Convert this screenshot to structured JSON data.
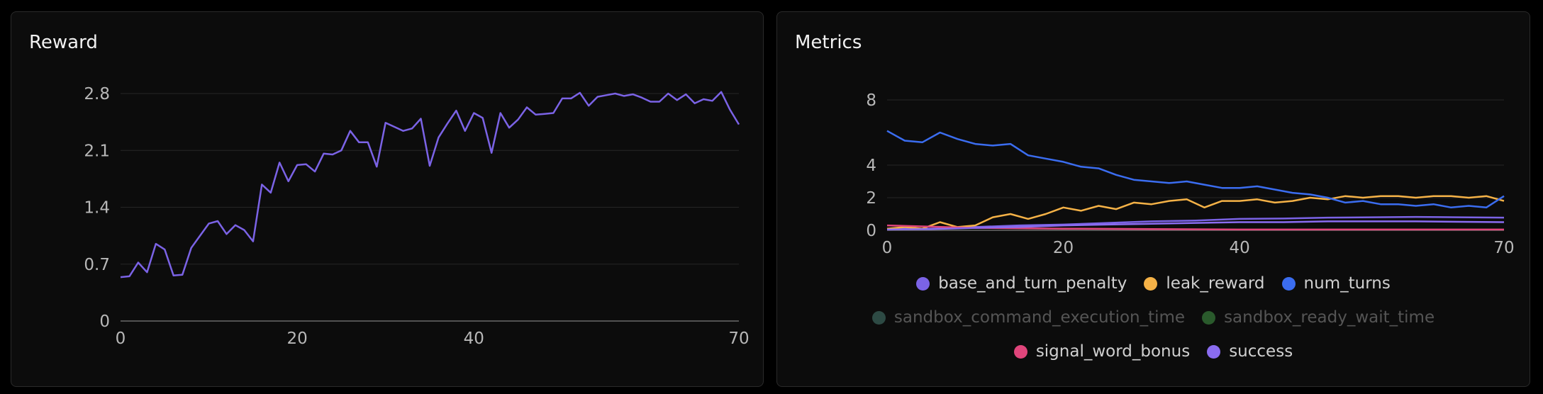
{
  "panels": {
    "reward_title": "Reward",
    "metrics_title": "Metrics"
  },
  "chart_data": [
    {
      "type": "line",
      "title": "Reward",
      "xlim": [
        0,
        70
      ],
      "ylim": [
        0,
        2.8
      ],
      "x_ticks": [
        "0",
        "20",
        "40",
        "70"
      ],
      "y_ticks": [
        "0",
        "0.7",
        "1.4",
        "2.1",
        "2.8"
      ],
      "grid": true,
      "series": [
        {
          "color": "#7b63e6",
          "x": [
            0,
            1,
            2,
            3,
            4,
            5,
            6,
            7,
            8,
            9,
            10,
            11,
            12,
            13,
            14,
            15,
            16,
            17,
            18,
            19,
            20,
            21,
            22,
            23,
            24,
            25,
            26,
            27,
            28,
            29,
            30,
            31,
            32,
            33,
            34,
            35,
            36,
            37,
            38,
            39,
            40,
            41,
            42,
            43,
            44,
            45,
            46,
            47,
            48,
            49,
            50,
            51,
            52,
            53,
            54,
            55,
            56,
            57,
            58,
            59,
            60,
            61,
            62,
            63,
            64,
            65,
            66,
            67,
            68,
            69,
            70
          ],
          "values": [
            0.54,
            0.55,
            0.72,
            0.6,
            0.95,
            0.88,
            0.56,
            0.57,
            0.9,
            1.05,
            1.2,
            1.23,
            1.07,
            1.18,
            1.12,
            0.98,
            1.68,
            1.58,
            1.95,
            1.72,
            1.92,
            1.93,
            1.84,
            2.06,
            2.05,
            2.1,
            2.34,
            2.2,
            2.2,
            1.9,
            2.44,
            2.39,
            2.34,
            2.37,
            2.49,
            1.91,
            2.26,
            2.43,
            2.59,
            2.34,
            2.56,
            2.5,
            2.07,
            2.56,
            2.38,
            2.48,
            2.63,
            2.54,
            2.55,
            2.56,
            2.74,
            2.74,
            2.81,
            2.65,
            2.76,
            2.78,
            2.8,
            2.77,
            2.79,
            2.75,
            2.7,
            2.7,
            2.8,
            2.72,
            2.79,
            2.68,
            2.73,
            2.71,
            2.82,
            2.6,
            2.42
          ]
        }
      ]
    },
    {
      "type": "line",
      "title": "Metrics",
      "xlim": [
        0,
        70
      ],
      "ylim": [
        0,
        8
      ],
      "x_ticks": [
        "0",
        "20",
        "40",
        "70"
      ],
      "y_ticks": [
        "0",
        "2",
        "4",
        "8"
      ],
      "grid": true,
      "legend_position": "bottom",
      "series": [
        {
          "name": "base_and_turn_penalty",
          "color": "#7b63e6",
          "x": [
            0,
            5,
            10,
            15,
            20,
            25,
            30,
            35,
            40,
            45,
            50,
            55,
            60,
            65,
            70
          ],
          "values": [
            0.1,
            0.1,
            0.2,
            0.3,
            0.35,
            0.45,
            0.55,
            0.6,
            0.7,
            0.72,
            0.78,
            0.8,
            0.82,
            0.8,
            0.78
          ]
        },
        {
          "name": "leak_reward",
          "color": "#f5b247",
          "x": [
            0,
            2,
            4,
            6,
            8,
            10,
            12,
            14,
            16,
            18,
            20,
            22,
            24,
            26,
            28,
            30,
            32,
            34,
            36,
            38,
            40,
            42,
            44,
            46,
            48,
            50,
            52,
            54,
            56,
            58,
            60,
            62,
            64,
            66,
            68,
            70
          ],
          "values": [
            0.1,
            0.2,
            0.1,
            0.5,
            0.2,
            0.3,
            0.8,
            1.0,
            0.7,
            1.0,
            1.4,
            1.2,
            1.5,
            1.3,
            1.7,
            1.6,
            1.8,
            1.9,
            1.4,
            1.8,
            1.8,
            1.9,
            1.7,
            1.8,
            2.0,
            1.9,
            2.1,
            2.0,
            2.1,
            2.1,
            2.0,
            2.1,
            2.1,
            2.0,
            2.1,
            1.8
          ]
        },
        {
          "name": "num_turns",
          "color": "#3b6df0",
          "x": [
            0,
            2,
            4,
            6,
            8,
            10,
            12,
            14,
            16,
            18,
            20,
            22,
            24,
            26,
            28,
            30,
            32,
            34,
            36,
            38,
            40,
            42,
            44,
            46,
            48,
            50,
            52,
            54,
            56,
            58,
            60,
            62,
            64,
            66,
            68,
            70
          ],
          "values": [
            6.1,
            5.5,
            5.4,
            6.0,
            5.6,
            5.3,
            5.2,
            5.3,
            4.6,
            4.4,
            4.2,
            3.9,
            3.8,
            3.4,
            3.1,
            3.0,
            2.9,
            3.0,
            2.8,
            2.6,
            2.6,
            2.7,
            2.5,
            2.3,
            2.2,
            2.0,
            1.7,
            1.8,
            1.6,
            1.6,
            1.5,
            1.6,
            1.4,
            1.5,
            1.4,
            2.1
          ]
        },
        {
          "name": "sandbox_command_execution_time",
          "color": "#2d4a44",
          "hidden": true,
          "x": [],
          "values": []
        },
        {
          "name": "sandbox_ready_wait_time",
          "color": "#2a5a2c",
          "hidden": true,
          "x": [],
          "values": []
        },
        {
          "name": "signal_word_bonus",
          "color": "#e0457b",
          "x": [
            0,
            10,
            20,
            30,
            40,
            50,
            60,
            70
          ],
          "values": [
            0.3,
            0.15,
            0.1,
            0.08,
            0.05,
            0.05,
            0.05,
            0.05
          ]
        },
        {
          "name": "success",
          "color": "#8a6cf0",
          "x": [
            0,
            5,
            10,
            15,
            20,
            25,
            30,
            35,
            40,
            45,
            50,
            55,
            60,
            65,
            70
          ],
          "values": [
            0.05,
            0.08,
            0.15,
            0.2,
            0.3,
            0.35,
            0.4,
            0.45,
            0.5,
            0.5,
            0.55,
            0.55,
            0.55,
            0.52,
            0.5
          ]
        }
      ]
    }
  ]
}
